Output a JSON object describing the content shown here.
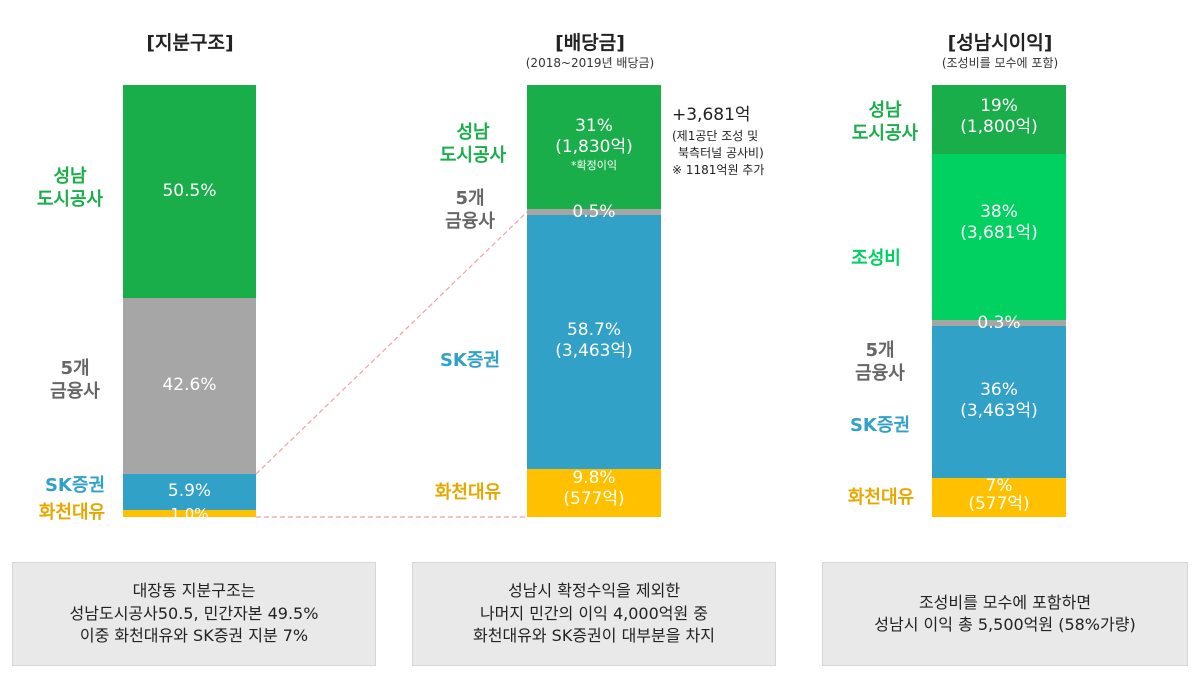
{
  "colors": {
    "green": "#1aae4a",
    "light_green": "#00d160",
    "gray": "#a6a6a6",
    "blue": "#31a1c7",
    "yellow": "#ffc000",
    "gray_text": "#666666",
    "connector": "#f4a0a0"
  },
  "chart_data": [
    {
      "type": "bar",
      "stacked": true,
      "title": "[지분구조]",
      "segments": [
        {
          "name": "성남 도시공사",
          "value": 50.5,
          "label": "50.5%"
        },
        {
          "name": "5개 금융사",
          "value": 42.6,
          "label": "42.6%"
        },
        {
          "name": "SK증권",
          "value": 5.9,
          "label": "5.9%"
        },
        {
          "name": "화천대유",
          "value": 1.0,
          "label": "1.0%"
        }
      ]
    },
    {
      "type": "bar",
      "stacked": true,
      "title": "[배당금]",
      "subtitle": "(2018~2019년 배당금)",
      "segments": [
        {
          "name": "성남 도시공사",
          "value": 31,
          "label": "31%",
          "amount": "(1,830억)",
          "note": "*확정이익"
        },
        {
          "name": "5개 금융사",
          "value": 0.5,
          "label": "0.5%"
        },
        {
          "name": "SK증권",
          "value": 58.7,
          "label": "58.7%",
          "amount": "(3,463억)"
        },
        {
          "name": "화천대유",
          "value": 9.8,
          "label": "9.8%",
          "amount": "(577억)"
        }
      ],
      "annotation": [
        "+3,681억",
        "(제1공단 조성 및",
        "북측터널 공사비)",
        "※ 1181억원 추가"
      ]
    },
    {
      "type": "bar",
      "stacked": true,
      "title": "[성남시이익]",
      "subtitle": "(조성비를 모수에 포함)",
      "segments": [
        {
          "name": "성남 도시공사",
          "value": 19,
          "label": "19%",
          "amount": "(1,800억)"
        },
        {
          "name": "조성비",
          "value": 38,
          "label": "38%",
          "amount": "(3,681억)"
        },
        {
          "name": "5개 금융사",
          "value": 0.3,
          "label": "0.3%"
        },
        {
          "name": "SK증권",
          "value": 36,
          "label": "36%",
          "amount": "(3,463억)"
        },
        {
          "name": "화천대유",
          "value": 7,
          "label": "7%",
          "amount": "(577억)"
        }
      ]
    }
  ],
  "categories": {
    "c1_sn_line1": "성남",
    "c1_sn_line2": "도시공사",
    "c1_fin_line1": "5개",
    "c1_fin_line2": "금융사",
    "c1_sk": "SK증권",
    "c1_hc": "화천대유",
    "c2_sn_line1": "성남",
    "c2_sn_line2": "도시공사",
    "c2_fin_line1": "5개",
    "c2_fin_line2": "금융사",
    "c2_sk": "SK증권",
    "c2_hc": "화천대유",
    "c3_sn_line1": "성남",
    "c3_sn_line2": "도시공사",
    "c3_jo": "조성비",
    "c3_fin_line1": "5개",
    "c3_fin_line2": "금융사",
    "c3_sk": "SK증권",
    "c3_hc": "화천대유"
  },
  "summary_boxes": [
    {
      "lines": [
        "대장동 지분구조는",
        "성남도시공사50.5, 민간자본 49.5%",
        "이중 화천대유와 SK증권 지분 7%"
      ]
    },
    {
      "lines": [
        "성남시 확정수익을 제외한",
        "나머지 민간의 이익 4,000억원 중",
        "화천대유와 SK증권이 대부분을 차지"
      ]
    },
    {
      "lines": [
        "조성비를 모수에 포함하면",
        "성남시 이익 총 5,500억원 (58%가량)"
      ]
    }
  ]
}
